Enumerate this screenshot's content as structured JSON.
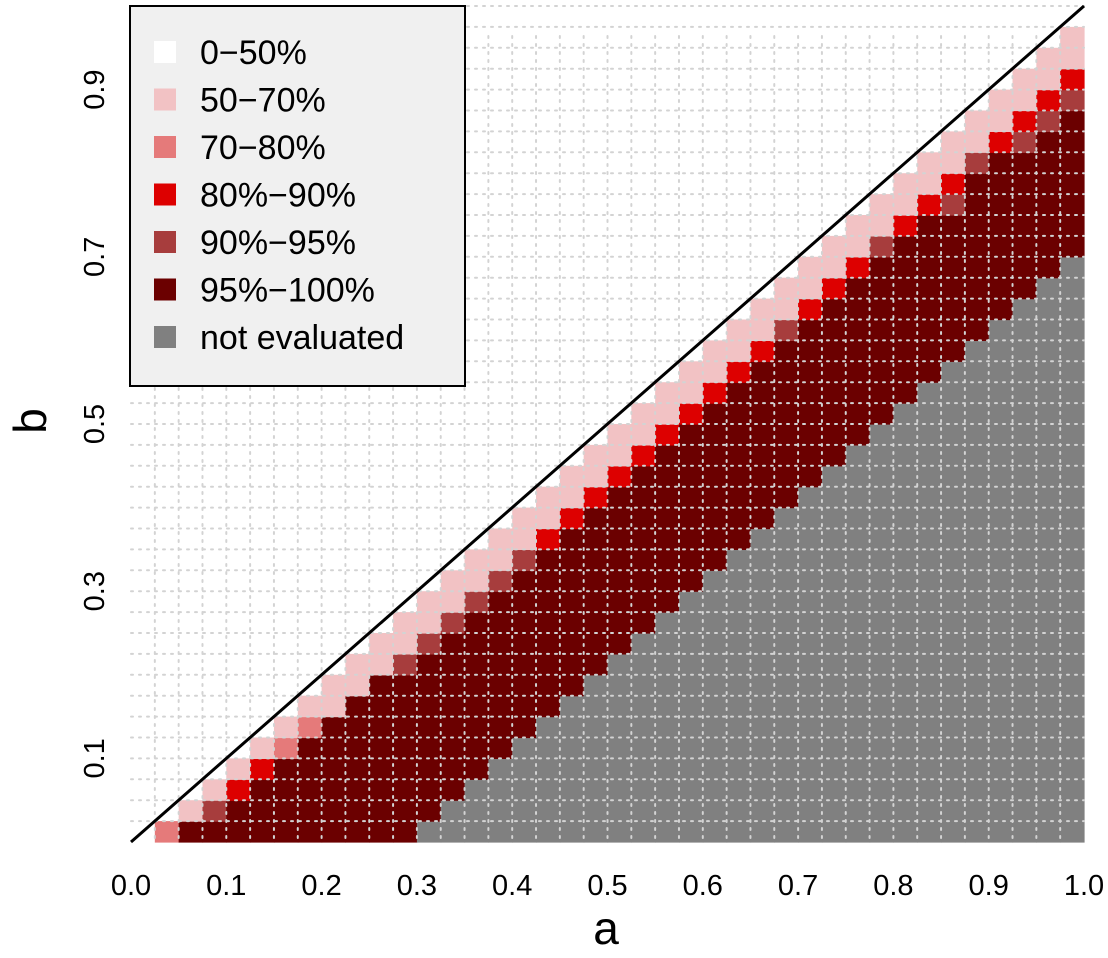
{
  "chart_data": {
    "type": "heatmap",
    "xlabel": "a",
    "ylabel": "b",
    "xlim": [
      0,
      1
    ],
    "ylim": [
      0,
      1
    ],
    "x_ticks": [
      "0.0",
      "0.1",
      "0.2",
      "0.3",
      "0.4",
      "0.5",
      "0.6",
      "0.7",
      "0.8",
      "0.9",
      "1.0"
    ],
    "y_ticks": [
      "0.1",
      "0.3",
      "0.5",
      "0.7",
      "0.9"
    ],
    "y_tick_values": [
      0.1,
      0.3,
      0.5,
      0.7,
      0.9
    ],
    "grid": true,
    "grid_style": "dotted",
    "diagonal_line": "b = a",
    "cell_step": 0.025,
    "legend_position": "top-left",
    "legend": [
      {
        "label": "0−50%",
        "color": "#ffffff"
      },
      {
        "label": "50−70%",
        "color": "#f2c2c4"
      },
      {
        "label": "70−80%",
        "color": "#e57a7a"
      },
      {
        "label": "80%−90%",
        "color": "#dd0000"
      },
      {
        "label": "90%−95%",
        "color": "#a73d3d"
      },
      {
        "label": "95%−100%",
        "color": "#6b0000"
      },
      {
        "label": "not evaluated",
        "color": "#808080"
      }
    ],
    "rule": {
      "description": "categories by column index i (a = 0.025*(i+1)) and row index j (b = 0.025*(j+1)); cells with j > i are above the diagonal and empty",
      "not_evaluated_when": "j <= i - 12 (b <= a - 0.3)",
      "band_outer": "j = i - 1 (top cell below diagonal)",
      "band_second": "j = i - 2",
      "band_third": "j = i - 3"
    },
    "band_colors_by_column": {
      "outer": [
        "#dd0000",
        "#e57a7a",
        "#f2c2c4",
        "#f2c2c4",
        "#f2c2c4",
        "#f2c2c4",
        "#f2c2c4",
        "#f2c2c4",
        "#f2c2c4",
        "#f2c2c4",
        "#f2c2c4",
        "#f2c2c4",
        "#f2c2c4",
        "#f2c2c4",
        "#f2c2c4",
        "#f2c2c4",
        "#f2c2c4",
        "#f2c2c4",
        "#f2c2c4",
        "#f2c2c4",
        "#f2c2c4",
        "#f2c2c4",
        "#f2c2c4",
        "#f2c2c4",
        "#f2c2c4",
        "#f2c2c4",
        "#f2c2c4",
        "#f2c2c4",
        "#f2c2c4",
        "#f2c2c4",
        "#f2c2c4",
        "#f2c2c4",
        "#f2c2c4",
        "#f2c2c4",
        "#f2c2c4",
        "#f2c2c4",
        "#f2c2c4",
        "#f2c2c4",
        "#f2c2c4",
        "#f2c2c4"
      ],
      "second": [
        null,
        "#6b0000",
        "#6b0000",
        "#a73d3d",
        "#dd0000",
        "#dd0000",
        "#e57a7a",
        "#e57a7a",
        "#f2c2c4",
        "#f2c2c4",
        "#f2c2c4",
        "#f2c2c4",
        "#f2c2c4",
        "#f2c2c4",
        "#f2c2c4",
        "#f2c2c4",
        "#f2c2c4",
        "#f2c2c4",
        "#f2c2c4",
        "#f2c2c4",
        "#f2c2c4",
        "#f2c2c4",
        "#f2c2c4",
        "#f2c2c4",
        "#f2c2c4",
        "#f2c2c4",
        "#f2c2c4",
        "#f2c2c4",
        "#f2c2c4",
        "#f2c2c4",
        "#f2c2c4",
        "#f2c2c4",
        "#f2c2c4",
        "#f2c2c4",
        "#f2c2c4",
        "#f2c2c4",
        "#f2c2c4",
        "#f2c2c4",
        "#f2c2c4",
        "#f2c2c4"
      ],
      "third": [
        null,
        null,
        "#6b0000",
        "#6b0000",
        "#6b0000",
        "#6b0000",
        "#6b0000",
        "#6b0000",
        "#6b0000",
        "#6b0000",
        "#6b0000",
        "#a73d3d",
        "#a73d3d",
        "#a73d3d",
        "#a73d3d",
        "#a73d3d",
        "#a73d3d",
        "#dd0000",
        "#dd0000",
        "#dd0000",
        "#dd0000",
        "#dd0000",
        "#dd0000",
        "#dd0000",
        "#dd0000",
        "#dd0000",
        "#dd0000",
        "#a73d3d",
        "#dd0000",
        "#dd0000",
        "#dd0000",
        "#a73d3d",
        "#dd0000",
        "#dd0000",
        "#dd0000",
        "#a73d3d",
        "#dd0000",
        "#dd0000",
        "#dd0000",
        "#dd0000"
      ],
      "fourth": [
        null,
        null,
        null,
        "#6b0000",
        "#6b0000",
        "#6b0000",
        "#6b0000",
        "#6b0000",
        "#6b0000",
        "#6b0000",
        "#6b0000",
        "#6b0000",
        "#6b0000",
        "#6b0000",
        "#6b0000",
        "#6b0000",
        "#6b0000",
        "#6b0000",
        "#6b0000",
        "#6b0000",
        "#6b0000",
        "#6b0000",
        "#6b0000",
        "#6b0000",
        "#6b0000",
        "#6b0000",
        "#6b0000",
        "#6b0000",
        "#6b0000",
        "#6b0000",
        "#6b0000",
        "#6b0000",
        "#6b0000",
        "#6b0000",
        "#a73d3d",
        "#6b0000",
        "#6b0000",
        "#a73d3d",
        "#a73d3d",
        "#a73d3d"
      ]
    },
    "default_evaluated_color": "#6b0000",
    "not_evaluated_color": "#808080"
  }
}
